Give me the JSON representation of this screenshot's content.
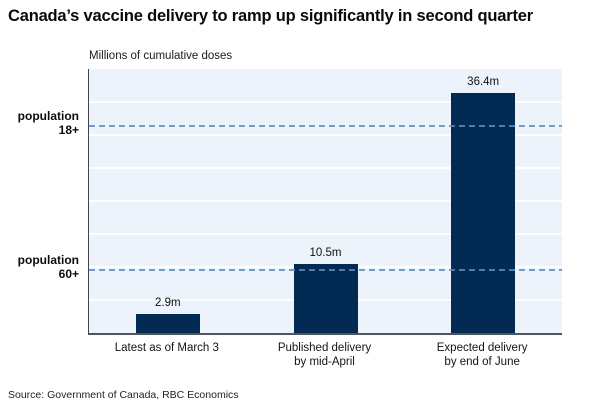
{
  "title": "Canada’s vaccine delivery to ramp up significantly in second quarter",
  "subtitle": "Millions of cumulative doses",
  "source": "Source: Government of Canada, RBC Economics",
  "colors": {
    "bar": "#022a52",
    "plot_bg": "#edf3fb",
    "gridline": "#ffffff",
    "reference_dash": "#5e8cbe",
    "axis": "#4d565e"
  },
  "chart_data": {
    "type": "bar",
    "categories": [
      "Latest as of March 3",
      "Published delivery\nby mid-April",
      "Expected delivery\nby end of June"
    ],
    "values": [
      2.9,
      10.5,
      36.4
    ],
    "value_labels": [
      "2.9m",
      "10.5m",
      "36.4m"
    ],
    "title": "Canada’s vaccine delivery to ramp up significantly in second quarter",
    "subtitle": "Millions of cumulative doses",
    "xlabel": "",
    "ylabel": "Millions of cumulative doses",
    "ylim": [
      0,
      40
    ],
    "grid": true,
    "grid_step": 5,
    "legend": false,
    "reference_lines": [
      {
        "label": "population\n18+",
        "value": 31.3
      },
      {
        "label": "population\n60+",
        "value": 9.5
      }
    ]
  }
}
